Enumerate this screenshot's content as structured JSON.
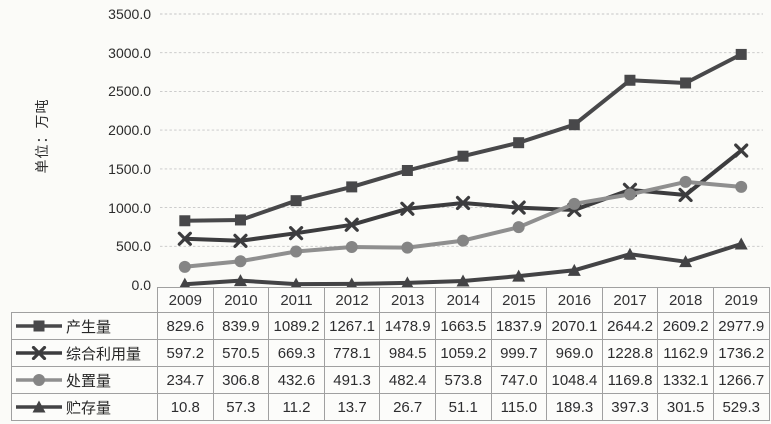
{
  "y_axis": {
    "title": "单位：万吨",
    "tick_labels": [
      "3500.0",
      "3000.0",
      "2500.0",
      "2000.0",
      "1500.0",
      "1000.0",
      "500.0",
      "0.0"
    ]
  },
  "chart_data": {
    "type": "line",
    "title": "",
    "xlabel": "",
    "ylabel": "单位：万吨",
    "ylim": [
      0,
      3500
    ],
    "y_step": 500,
    "grid": true,
    "legend_position": "table-left",
    "categories": [
      "2009",
      "2010",
      "2011",
      "2012",
      "2013",
      "2014",
      "2015",
      "2016",
      "2017",
      "2018",
      "2019"
    ],
    "series": [
      {
        "key": "generation",
        "name": "产生量",
        "marker": "square",
        "color": "#48484a",
        "values": [
          829.6,
          839.9,
          1089.2,
          1267.1,
          1478.9,
          1663.5,
          1837.9,
          2070.1,
          2644.2,
          2609.2,
          2977.9
        ]
      },
      {
        "key": "comprehensive-utilization",
        "name": "综合利用量",
        "marker": "x",
        "color": "#3c3c3e",
        "values": [
          597.2,
          570.5,
          669.3,
          778.1,
          984.5,
          1059.2,
          999.7,
          969.0,
          1228.8,
          1162.9,
          1736.2
        ]
      },
      {
        "key": "disposal",
        "name": "处置量",
        "marker": "circle",
        "color": "#8f8f8f",
        "marker_color": "#858585",
        "values": [
          234.7,
          306.8,
          432.6,
          491.3,
          482.4,
          573.8,
          747.0,
          1048.4,
          1169.8,
          1332.1,
          1266.7
        ]
      },
      {
        "key": "storage",
        "name": "贮存量",
        "marker": "triangle",
        "color": "#434345",
        "values": [
          10.8,
          57.3,
          11.2,
          13.7,
          26.7,
          51.1,
          115.0,
          189.3,
          397.3,
          301.5,
          529.3
        ]
      }
    ]
  }
}
